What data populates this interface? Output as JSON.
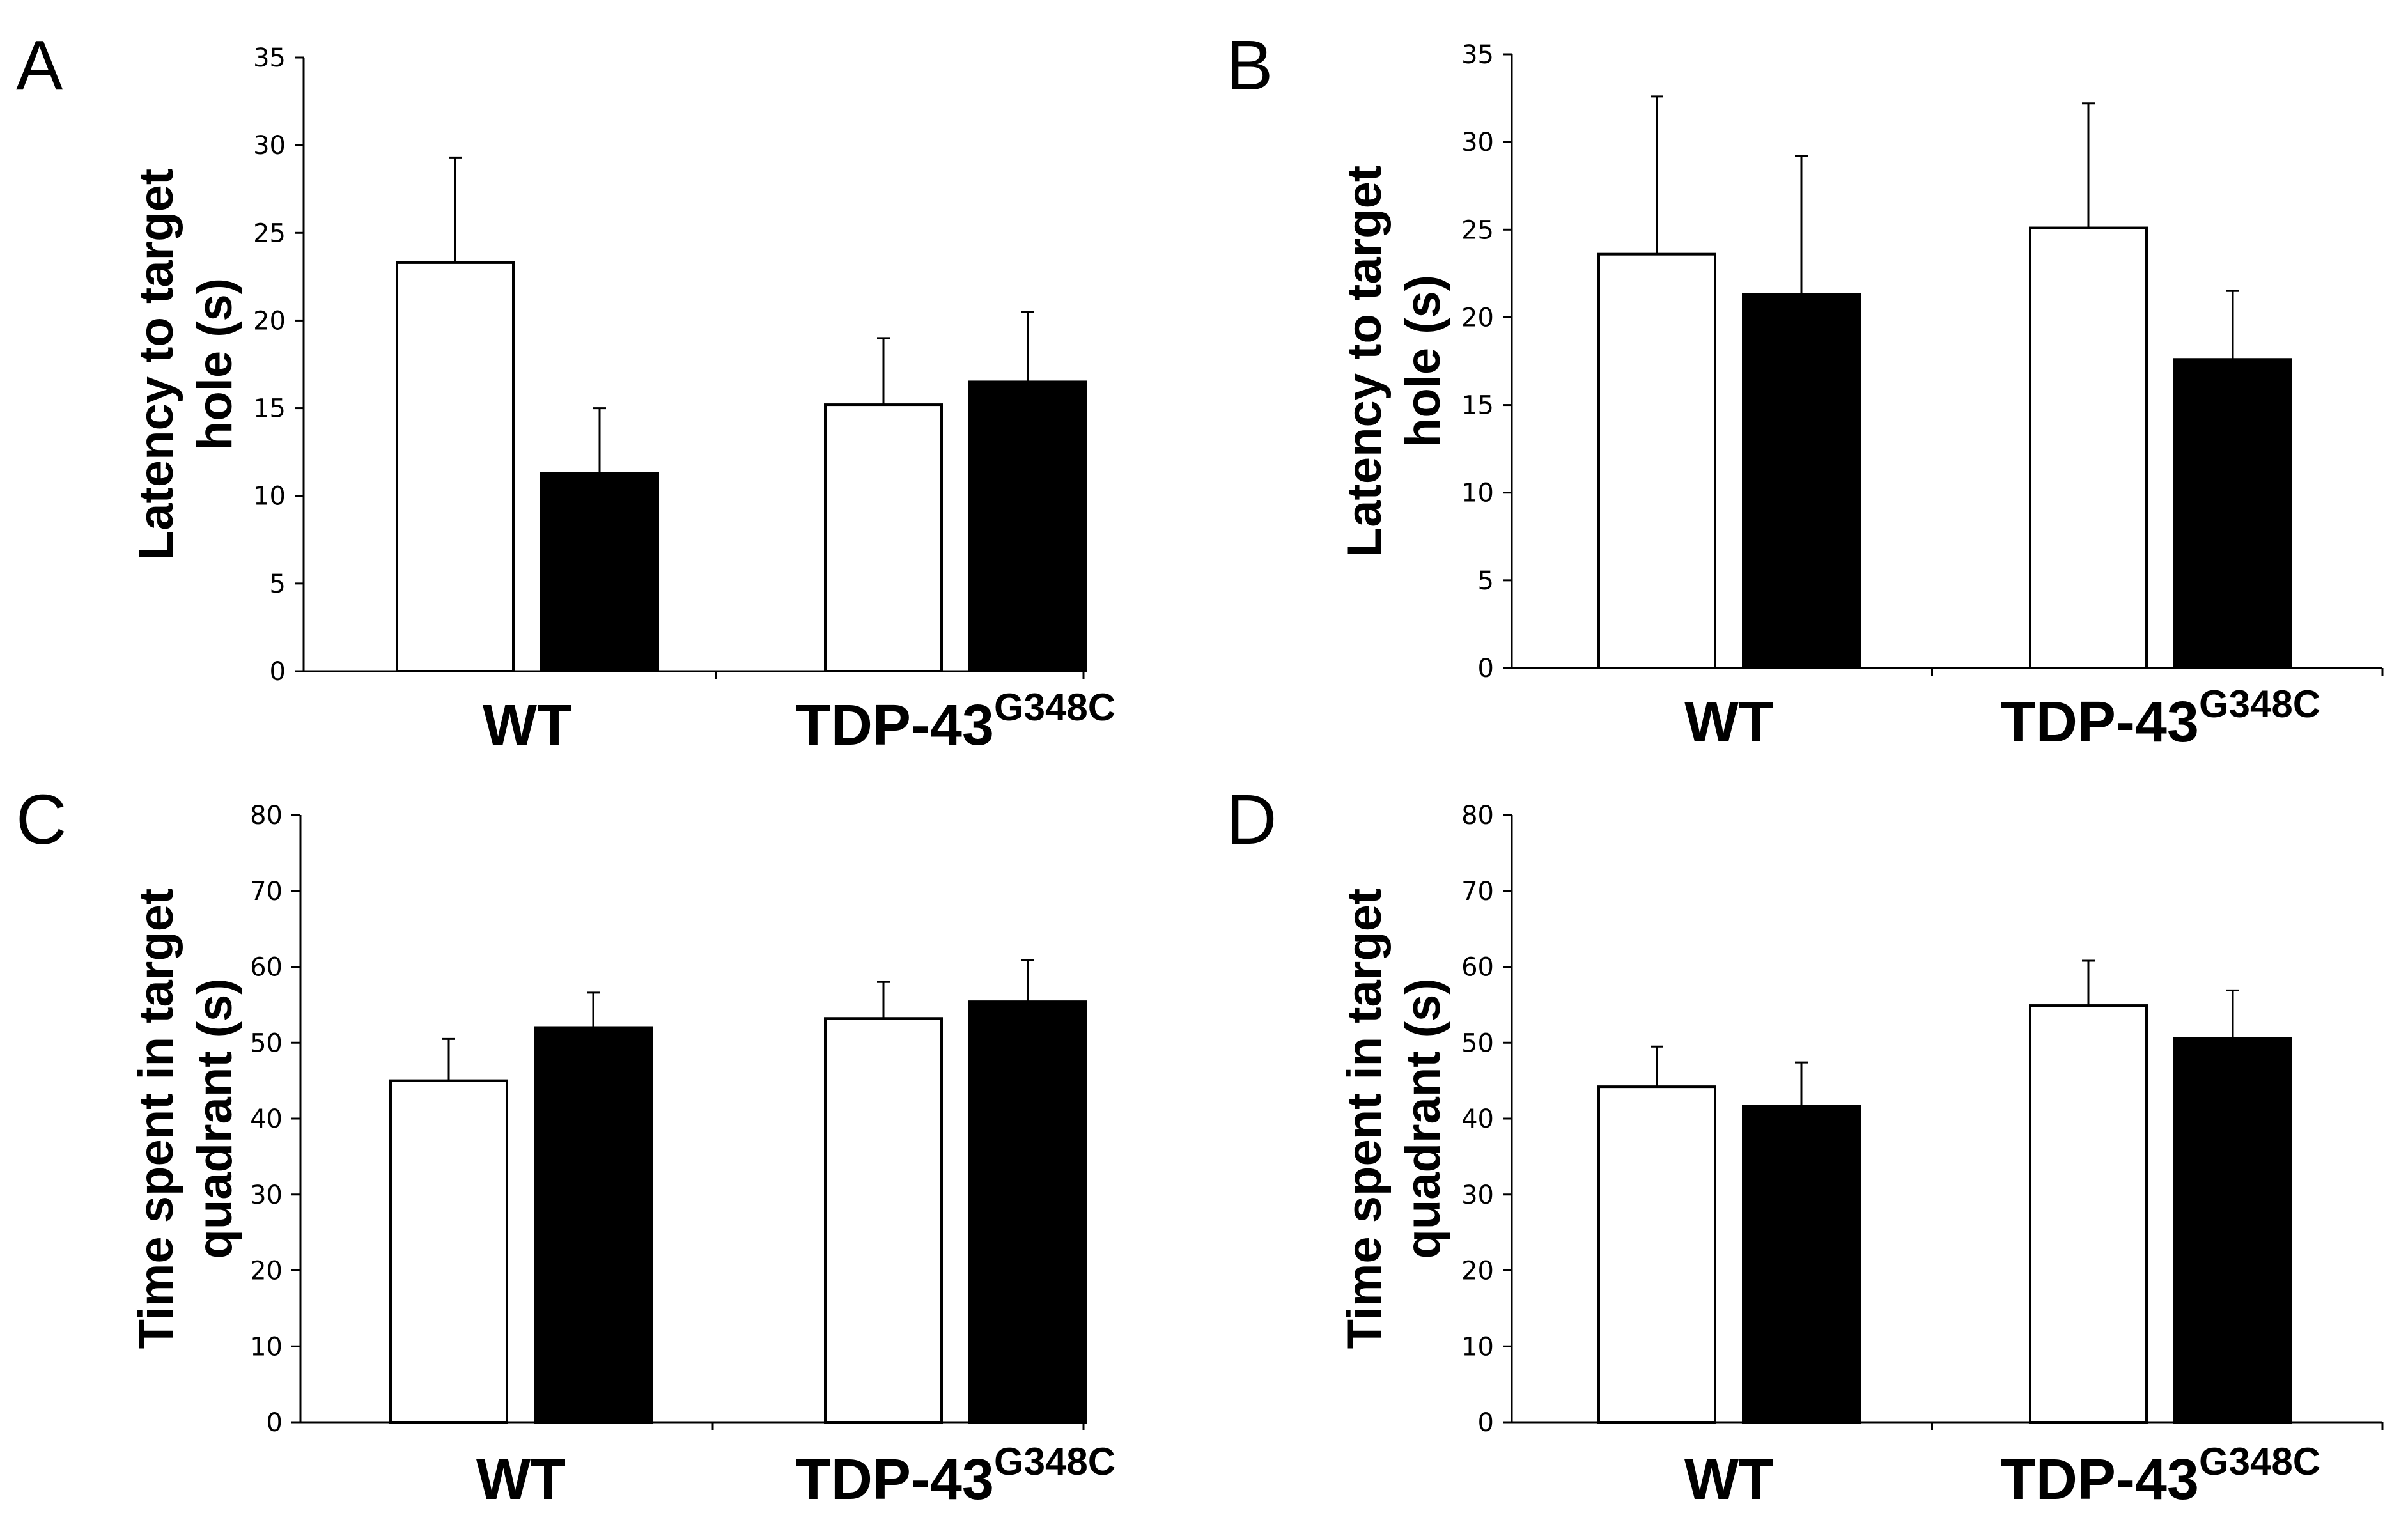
{
  "colors": {
    "control": "#ffffff",
    "treated": "#000000",
    "axis": "#000000"
  },
  "chart_data": [
    {
      "panel": "A",
      "type": "bar",
      "categories": [
        {
          "base": "WT",
          "sup": ""
        },
        {
          "base": "TDP-43",
          "sup": "G348C"
        }
      ],
      "ylabel_lines": [
        "Latency to target",
        "hole (s)"
      ],
      "ylim": [
        0,
        35
      ],
      "yticks": [
        0,
        5,
        10,
        15,
        20,
        25,
        30,
        35
      ],
      "series": [
        {
          "values": [
            23.3,
            15.2
          ],
          "errors": [
            6.0,
            3.8
          ],
          "fill": "#ffffff"
        },
        {
          "values": [
            11.3,
            16.5
          ],
          "errors": [
            3.7,
            4.0
          ],
          "fill": "#000000"
        }
      ]
    },
    {
      "panel": "B",
      "type": "bar",
      "categories": [
        {
          "base": "WT",
          "sup": ""
        },
        {
          "base": "TDP-43",
          "sup": "G348C"
        }
      ],
      "ylabel_lines": [
        "Latency to target",
        "hole (s)"
      ],
      "ylim": [
        0,
        35
      ],
      "yticks": [
        0,
        5,
        10,
        15,
        20,
        25,
        30,
        35
      ],
      "series": [
        {
          "values": [
            23.6,
            25.1
          ],
          "errors": [
            9.0,
            7.1
          ],
          "fill": "#ffffff"
        },
        {
          "values": [
            21.3,
            17.6
          ],
          "errors": [
            7.9,
            3.9
          ],
          "fill": "#000000"
        }
      ]
    },
    {
      "panel": "C",
      "type": "bar",
      "categories": [
        {
          "base": "WT",
          "sup": ""
        },
        {
          "base": "TDP-43",
          "sup": "G348C"
        }
      ],
      "ylabel_lines": [
        "Time spent in target",
        "quadrant (s)"
      ],
      "ylim": [
        0,
        80
      ],
      "yticks": [
        0,
        10,
        20,
        30,
        40,
        50,
        60,
        70,
        80
      ],
      "series": [
        {
          "values": [
            45.0,
            53.2
          ],
          "errors": [
            5.5,
            4.8
          ],
          "fill": "#ffffff"
        },
        {
          "values": [
            52.0,
            55.4
          ],
          "errors": [
            4.6,
            5.5
          ],
          "fill": "#000000"
        }
      ]
    },
    {
      "panel": "D",
      "type": "bar",
      "categories": [
        {
          "base": "WT",
          "sup": ""
        },
        {
          "base": "TDP-43",
          "sup": "G348C"
        }
      ],
      "ylabel_lines": [
        "Time spent in target",
        "quadrant (s)"
      ],
      "ylim": [
        0,
        80
      ],
      "yticks": [
        0,
        10,
        20,
        30,
        40,
        50,
        60,
        70,
        80
      ],
      "series": [
        {
          "values": [
            44.2,
            54.9
          ],
          "errors": [
            5.3,
            5.9
          ],
          "fill": "#ffffff"
        },
        {
          "values": [
            41.6,
            50.6
          ],
          "errors": [
            5.8,
            6.3
          ],
          "fill": "#000000"
        }
      ]
    }
  ]
}
